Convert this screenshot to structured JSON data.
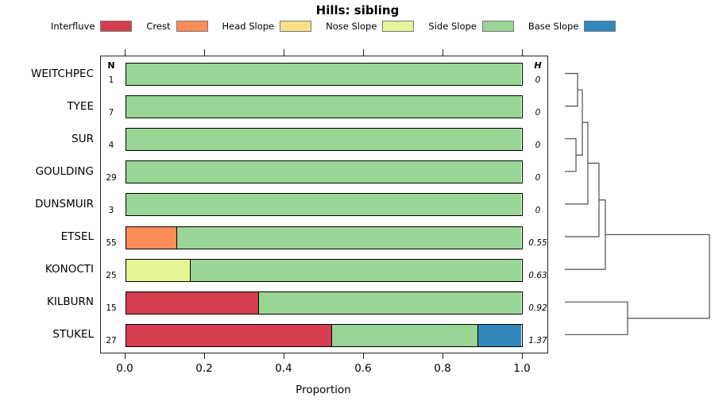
{
  "title": "Hills: sibling",
  "chart_data": {
    "type": "stacked_bar_horizontal_with_dendrogram",
    "title": "Hills: sibling",
    "xlabel": "Proportion",
    "xlim": [
      0.0,
      1.0
    ],
    "x_ticks": [
      0.0,
      0.2,
      0.4,
      0.6,
      0.8,
      1.0
    ],
    "x_tick_labels": [
      "0.0",
      "0.2",
      "0.4",
      "0.6",
      "0.8",
      "1.0"
    ],
    "legend_position": "top",
    "grid": false,
    "columns": {
      "n_header": "N",
      "h_header": "H"
    },
    "legend": [
      {
        "label": "Interfluve",
        "color": "#D53E4F"
      },
      {
        "label": "Crest",
        "color": "#FC8D59"
      },
      {
        "label": "Head Slope",
        "color": "#FEE08B"
      },
      {
        "label": "Nose Slope",
        "color": "#E6F598"
      },
      {
        "label": "Side Slope",
        "color": "#99D594"
      },
      {
        "label": "Base Slope",
        "color": "#3288BD"
      }
    ],
    "rows": [
      {
        "label": "WEITCHPEC",
        "n": "1",
        "h": "0",
        "segments": [
          {
            "category": "Side Slope",
            "value": 1.0
          }
        ]
      },
      {
        "label": "TYEE",
        "n": "7",
        "h": "0",
        "segments": [
          {
            "category": "Side Slope",
            "value": 1.0
          }
        ]
      },
      {
        "label": "SUR",
        "n": "4",
        "h": "0",
        "segments": [
          {
            "category": "Side Slope",
            "value": 1.0
          }
        ]
      },
      {
        "label": "GOULDING",
        "n": "29",
        "h": "0",
        "segments": [
          {
            "category": "Side Slope",
            "value": 1.0
          }
        ]
      },
      {
        "label": "DUNSMUIR",
        "n": "3",
        "h": "0",
        "segments": [
          {
            "category": "Side Slope",
            "value": 1.0
          }
        ]
      },
      {
        "label": "ETSEL",
        "n": "55",
        "h": "0.55",
        "segments": [
          {
            "category": "Crest",
            "value": 0.127
          },
          {
            "category": "Side Slope",
            "value": 0.873
          }
        ]
      },
      {
        "label": "KONOCTI",
        "n": "25",
        "h": "0.63",
        "segments": [
          {
            "category": "Nose Slope",
            "value": 0.16
          },
          {
            "category": "Side Slope",
            "value": 0.84
          }
        ]
      },
      {
        "label": "KILBURN",
        "n": "15",
        "h": "0.92",
        "segments": [
          {
            "category": "Interfluve",
            "value": 0.333
          },
          {
            "category": "Side Slope",
            "value": 0.667
          }
        ]
      },
      {
        "label": "STUKEL",
        "n": "27",
        "h": "1.37",
        "segments": [
          {
            "category": "Interfluve",
            "value": 0.519
          },
          {
            "category": "Side Slope",
            "value": 0.37
          },
          {
            "category": "Base Slope",
            "value": 0.111
          }
        ]
      }
    ],
    "dendrogram": {
      "note": "leaves 0-8 in row order; merge k creates node 9+k; height is normalized merge distance 0-1",
      "merges": [
        {
          "a": 0,
          "b": 1,
          "height": 0.088
        },
        {
          "a": 2,
          "b": 3,
          "height": 0.077
        },
        {
          "a": 9,
          "b": 10,
          "height": 0.121
        },
        {
          "a": 11,
          "b": 4,
          "height": 0.159
        },
        {
          "a": 12,
          "b": 5,
          "height": 0.236
        },
        {
          "a": 13,
          "b": 6,
          "height": 0.28
        },
        {
          "a": 7,
          "b": 8,
          "height": 0.434
        },
        {
          "a": 14,
          "b": 15,
          "height": 1.0
        }
      ]
    }
  }
}
